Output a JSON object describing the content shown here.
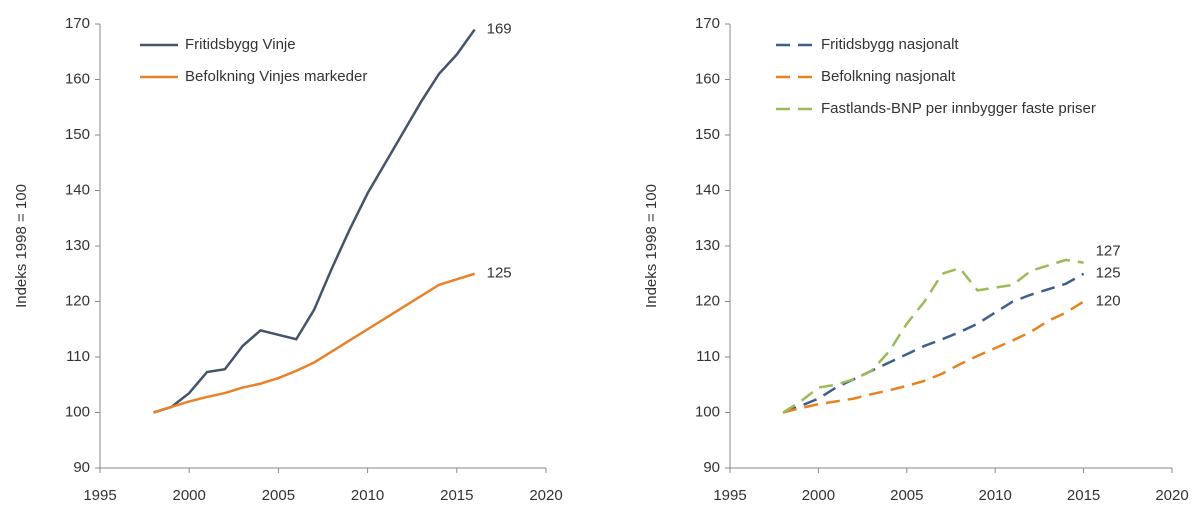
{
  "chart_data": [
    {
      "type": "line",
      "y_label": "Indeks 1998 = 100",
      "line_style": "solid",
      "xlim": [
        1995,
        2020
      ],
      "xticks": [
        1995,
        2000,
        2005,
        2010,
        2015,
        2020
      ],
      "ylim": [
        90,
        170
      ],
      "yticks": [
        90,
        100,
        110,
        120,
        130,
        140,
        150,
        160,
        170
      ],
      "x": [
        1998,
        1999,
        2000,
        2001,
        2002,
        2003,
        2004,
        2005,
        2006,
        2007,
        2008,
        2009,
        2010,
        2011,
        2012,
        2013,
        2014,
        2015,
        2016
      ],
      "series": [
        {
          "name": "Fritidsbygg Vinje",
          "color": "#44546a",
          "values": [
            100,
            101,
            103.5,
            107.3,
            107.8,
            112,
            114.8,
            114,
            113.2,
            118.5,
            126,
            133,
            139.5,
            145,
            150.5,
            156,
            161,
            164.5,
            169
          ]
        },
        {
          "name": "Befolkning Vinjes markeder",
          "color": "#e8822a",
          "values": [
            100,
            101,
            102,
            102.8,
            103.5,
            104.5,
            105.2,
            106.2,
            107.5,
            109,
            111,
            113,
            115,
            117,
            119,
            121,
            123,
            124,
            125
          ]
        }
      ]
    },
    {
      "type": "line",
      "y_label": "Indeks 1998 = 100",
      "line_style": "dashed",
      "xlim": [
        1995,
        2020
      ],
      "xticks": [
        1995,
        2000,
        2005,
        2010,
        2015,
        2020
      ],
      "ylim": [
        90,
        170
      ],
      "yticks": [
        90,
        100,
        110,
        120,
        130,
        140,
        150,
        160,
        170
      ],
      "x": [
        1998,
        1999,
        2000,
        2001,
        2002,
        2003,
        2004,
        2005,
        2006,
        2007,
        2008,
        2009,
        2010,
        2011,
        2012,
        2013,
        2014,
        2015
      ],
      "series": [
        {
          "name": "Fritidsbygg nasjonalt",
          "color": "#3e5f8a",
          "values": [
            100,
            101.2,
            102.5,
            104.5,
            106,
            107.5,
            109,
            110.5,
            112,
            113.2,
            114.5,
            116,
            118,
            120,
            121.2,
            122.2,
            123.2,
            125
          ]
        },
        {
          "name": "Befolkning nasjonalt",
          "color": "#e8821e",
          "values": [
            100,
            100.8,
            101.5,
            102,
            102.5,
            103.3,
            104,
            104.8,
            105.7,
            107,
            108.7,
            110.2,
            111.6,
            113,
            114.5,
            116.5,
            118,
            120
          ]
        },
        {
          "name": "Fastlands-BNP per innbygger faste priser",
          "color": "#9bbb59",
          "values": [
            100,
            102,
            104.5,
            105,
            106,
            107.5,
            111,
            116,
            120,
            125,
            126,
            122,
            122.5,
            123,
            125.5,
            126.5,
            127.5,
            127
          ]
        }
      ]
    }
  ]
}
